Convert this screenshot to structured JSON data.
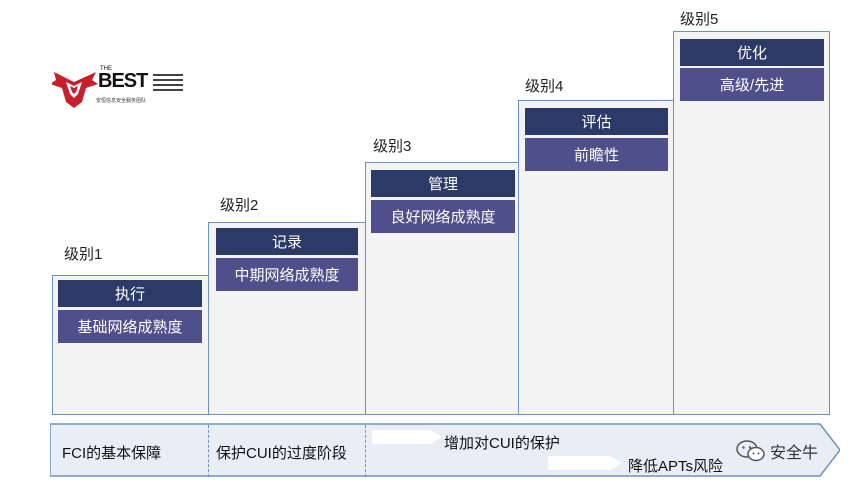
{
  "logo": {
    "the": "THE",
    "name": "BEST",
    "subtitle": "安恒信息安全服务团队"
  },
  "levels": [
    {
      "label": "级别1",
      "title": "执行",
      "desc": "基础网络成熟度"
    },
    {
      "label": "级别2",
      "title": "记录",
      "desc": "中期网络成熟度"
    },
    {
      "label": "级别3",
      "title": "管理",
      "desc": "良好网络成熟度"
    },
    {
      "label": "级别4",
      "title": "评估",
      "desc": "前瞻性"
    },
    {
      "label": "级别5",
      "title": "优化",
      "desc": "高级/先进"
    }
  ],
  "bottom": {
    "fci": "FCI的基本保障",
    "cui_transition": "保护CUI的过度阶段",
    "cui_increase": "增加对CUI的保护",
    "apt": "降低APTs风险"
  },
  "watermark": {
    "text": "安全牛",
    "icon": "wechat-icon"
  },
  "colors": {
    "title_bg": "#2b3a67",
    "desc_bg": "#4f4f8b",
    "border": "#6a93c2",
    "stage_bg": "#f3f3f3"
  }
}
